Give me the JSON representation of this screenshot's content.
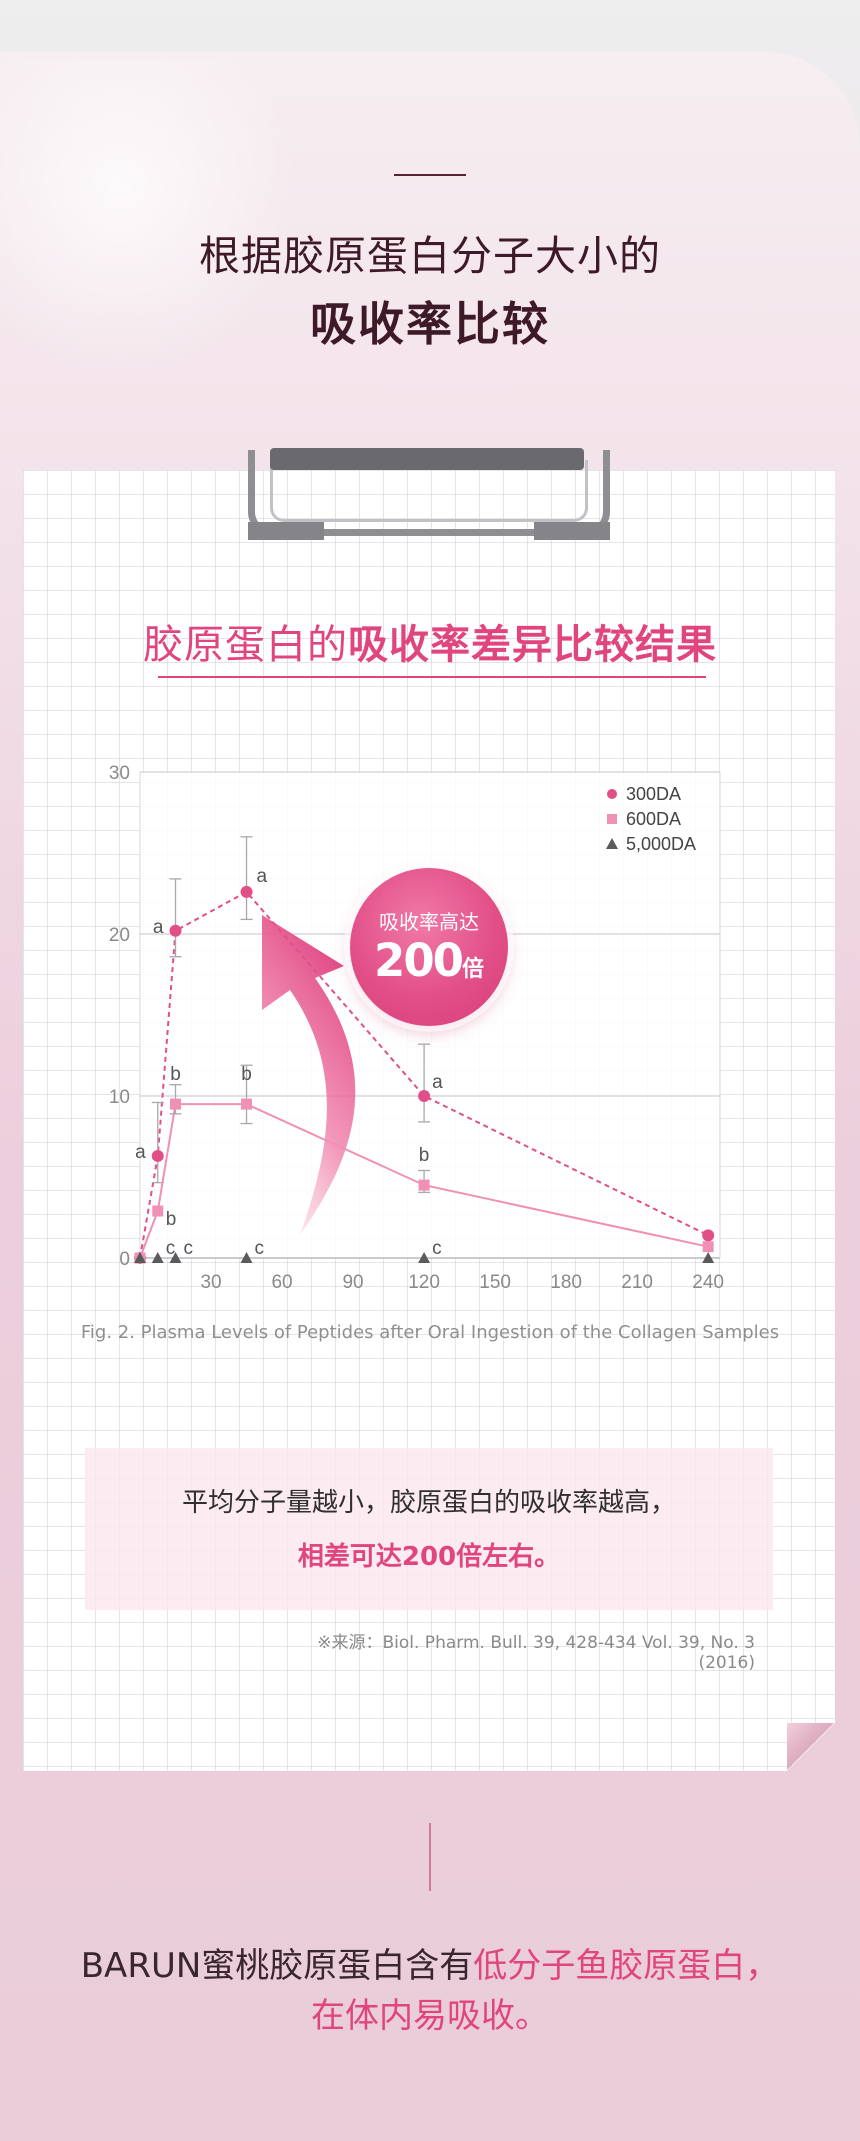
{
  "header": {
    "title_line1": "根据胶原蛋白分子大小的",
    "title_line2": "吸收率比较"
  },
  "chart_heading": {
    "prefix": "胶原蛋白的",
    "bold": "吸收率差异比较结果"
  },
  "callout": {
    "line1": "吸收率高达",
    "number": "200",
    "unit": "倍"
  },
  "caption": "Fig. 2. Plasma Levels of Peptides after Oral Ingestion of the Collagen Samples",
  "summary": {
    "line1": "平均分子量越小，胶原蛋白的吸收率越高，",
    "line2": "相差可达200倍左右。"
  },
  "source": "※来源：Biol. Pharm. Bull. 39, 428-434 Vol. 39, No. 3 (2016)",
  "bottom": {
    "line1_prefix": "BARUN蜜桃胶原蛋白含有",
    "line1_highlight": "低分子鱼胶原蛋白，",
    "line2": "在体内易吸收。"
  },
  "colors": {
    "accent": "#e0457e",
    "series_300": "#e24f88",
    "series_600": "#f090b5",
    "series_5000": "#5a5a5a",
    "title_dark": "#3e1a28"
  },
  "chart_data": {
    "type": "line",
    "x_ticks": [
      "30",
      "60",
      "90",
      "120",
      "150",
      "180",
      "210",
      "240"
    ],
    "y_ticks": [
      "0",
      "10",
      "20",
      "30"
    ],
    "ylim": [
      0,
      30
    ],
    "xlim": [
      0,
      245
    ],
    "grid": true,
    "legend_position": "top-right",
    "series": [
      {
        "name": "300DA",
        "color": "#e24f88",
        "marker": "circle",
        "dashed": true,
        "points": [
          {
            "x": 0,
            "y": 0,
            "label": "",
            "err": 0
          },
          {
            "x": 7.5,
            "y": 6.3,
            "label": "a",
            "err": 3.3
          },
          {
            "x": 15,
            "y": 20.2,
            "label": "a",
            "err": 3.2
          },
          {
            "x": 45,
            "y": 22.6,
            "label": "a",
            "err": 3.4
          },
          {
            "x": 120,
            "y": 10,
            "label": "a",
            "err": 3.2
          },
          {
            "x": 240,
            "y": 1.4,
            "label": "",
            "err": 0
          }
        ]
      },
      {
        "name": "600DA",
        "color": "#f090b5",
        "marker": "square",
        "dashed": false,
        "points": [
          {
            "x": 0,
            "y": 0,
            "label": "",
            "err": 0
          },
          {
            "x": 7.5,
            "y": 2.9,
            "label": "b",
            "err": 0
          },
          {
            "x": 15,
            "y": 9.5,
            "label": "b",
            "err": 1.2
          },
          {
            "x": 45,
            "y": 9.5,
            "label": "b",
            "err": 2.4
          },
          {
            "x": 120,
            "y": 4.5,
            "label": "b",
            "err": 0.9
          },
          {
            "x": 240,
            "y": 0.7,
            "label": "",
            "err": 0
          }
        ]
      },
      {
        "name": "5,000DA",
        "color": "#5a5a5a",
        "marker": "triangle",
        "dashed": false,
        "points": [
          {
            "x": 0,
            "y": 0,
            "label": "",
            "err": 0
          },
          {
            "x": 7.5,
            "y": 0,
            "label": "c",
            "err": 0
          },
          {
            "x": 15,
            "y": 0,
            "label": "c",
            "err": 0
          },
          {
            "x": 45,
            "y": 0,
            "label": "c",
            "err": 0
          },
          {
            "x": 120,
            "y": 0,
            "label": "c",
            "err": 0
          },
          {
            "x": 240,
            "y": 0,
            "label": "",
            "err": 0
          }
        ]
      }
    ]
  }
}
